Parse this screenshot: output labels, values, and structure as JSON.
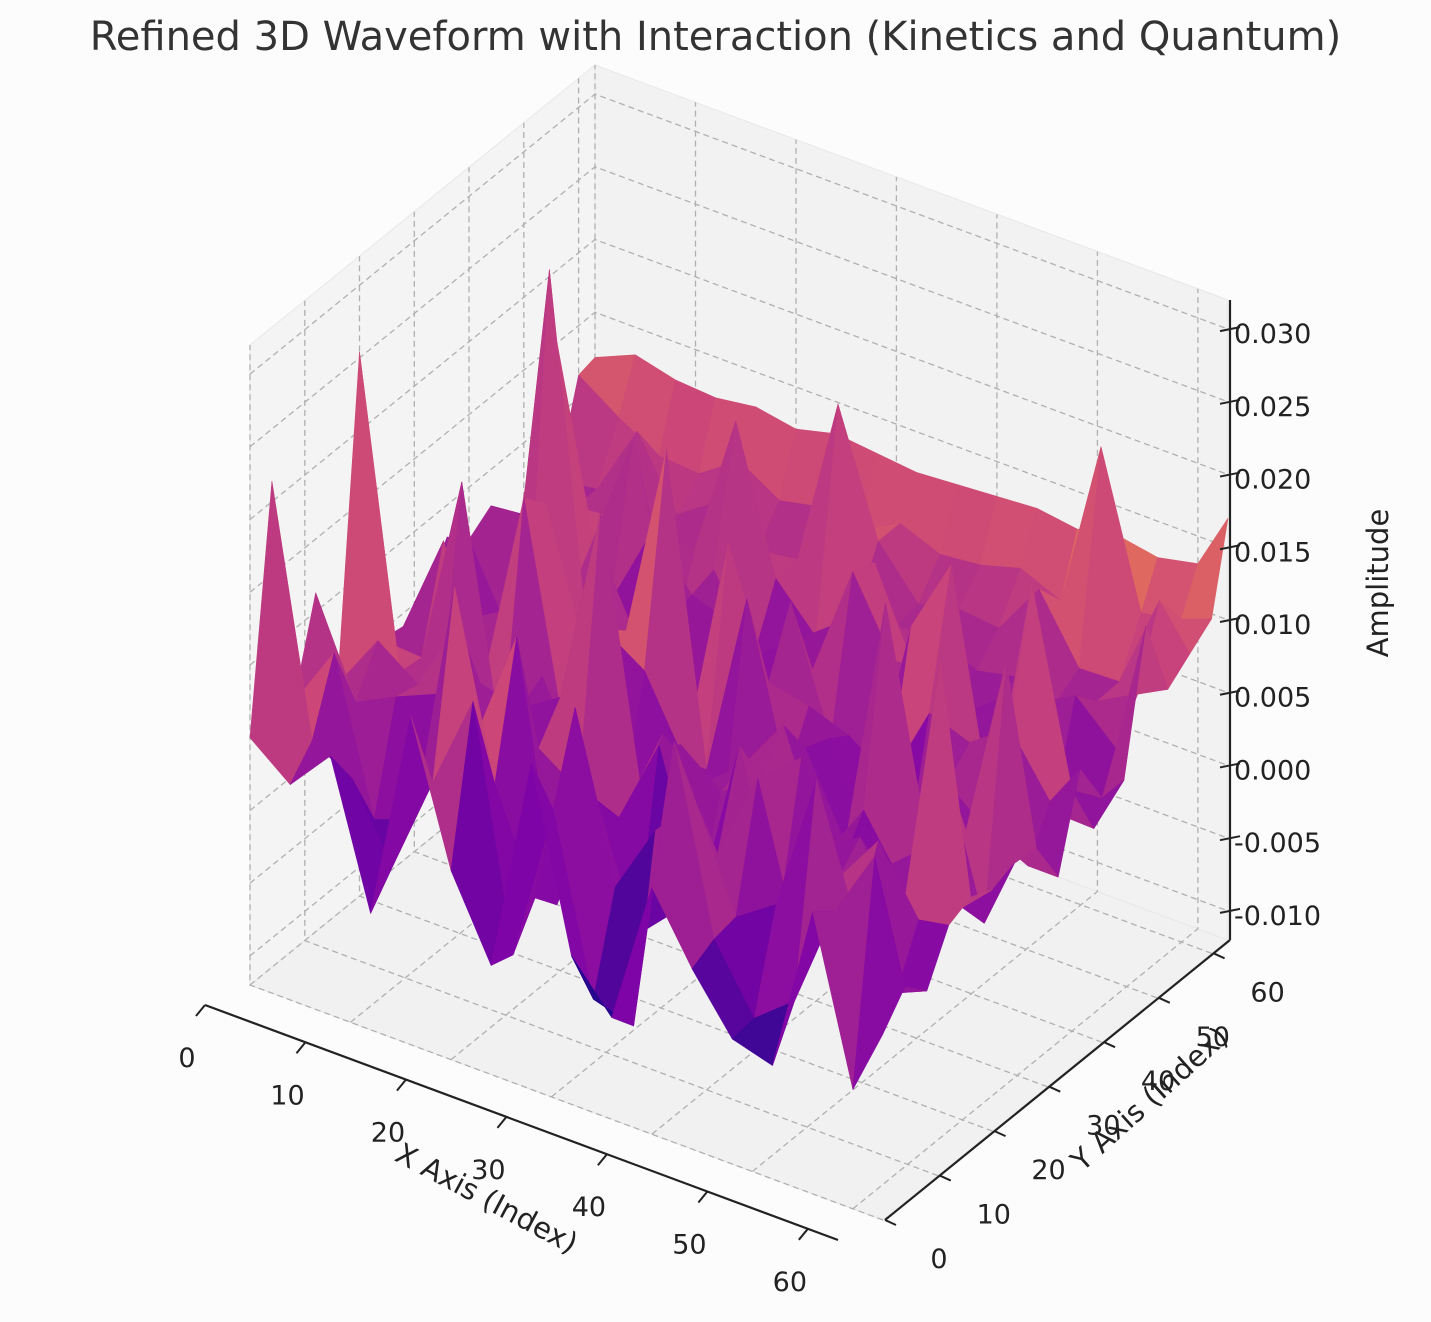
{
  "chart_data": {
    "type": "surface",
    "title": "Refined 3D Waveform with Interaction (Kinetics and Quantum)",
    "xlabel": "X Axis (Index)",
    "ylabel": "Y Axis (Index)",
    "zlabel": "Amplitude",
    "x_ticks": [
      "0",
      "10",
      "20",
      "30",
      "40",
      "50",
      "60"
    ],
    "y_ticks": [
      "0",
      "10",
      "20",
      "30",
      "40",
      "50",
      "60"
    ],
    "z_ticks": [
      "-0.010",
      "-0.005",
      "0.000",
      "0.005",
      "0.010",
      "0.015",
      "0.020",
      "0.025",
      "0.030"
    ],
    "xlim": [
      0,
      63
    ],
    "ylim": [
      0,
      63
    ],
    "zlim": [
      -0.012,
      0.032
    ],
    "grid": true,
    "colormap": "plasma",
    "colors": {
      "pane_floor": "#f1f1f1",
      "pane_left": "#f4f4f4",
      "pane_back": "#f2f2f2",
      "grid": "#b0b0b0",
      "axis": "#222222"
    },
    "surface_x": [
      0,
      4,
      8,
      12,
      16,
      20,
      24,
      28,
      32,
      36,
      40,
      44,
      48,
      52,
      56,
      60,
      63
    ],
    "surface_y": [
      0,
      4,
      8,
      12,
      16,
      20,
      24,
      28,
      32,
      36,
      40,
      44,
      48,
      52,
      56,
      60,
      63
    ],
    "surface_z": [
      [
        0.005,
        0.0028,
        0.0058,
        -0.004,
        0.0106,
        0.001,
        -0.0045,
        0.0104,
        -0.0018,
        -0.005,
        0.005,
        0.0004,
        -0.0034,
        -0.0042,
        0.0074,
        -0.0038,
        0.0008
      ],
      [
        0.0214,
        0.0046,
        0.003,
        -0.002,
        0.0048,
        0.0114,
        -0.005,
        0.006,
        -0.006,
        -0.0068,
        0.0138,
        0.0012,
        -0.0032,
        -0.001,
        0.0062,
        0.011,
        0.0028
      ],
      [
        0.005,
        0.0094,
        -0.001,
        0.0,
        0.017,
        0.0045,
        -0.0023,
        0.0118,
        0.0005,
        0.0054,
        0.0084,
        0.0015,
        0.0034,
        0.013,
        0.0041,
        0.0004,
        0.0013
      ],
      [
        0.0113,
        0.0048,
        0.0062,
        0.0074,
        0.0056,
        0.0134,
        -0.004,
        0.0042,
        -0.004,
        -0.0013,
        0.0036,
        0.0098,
        -0.0006,
        0.005,
        0.0086,
        0.0042,
        0.0046
      ],
      [
        0.0038,
        0.0078,
        0.0058,
        0.011,
        -0.0018,
        0.0045,
        0.0026,
        0.0018,
        0.0078,
        -0.0018,
        0.0098,
        -0.0006,
        0.0048,
        0.0066,
        0.0012,
        0.0208,
        0.0053
      ],
      [
        0.0254,
        0.0044,
        0.0027,
        0.0057,
        0.005,
        0.0068,
        0.0206,
        0.0025,
        0.0066,
        0.0044,
        0.0064,
        0.0088,
        0.0024,
        0.0032,
        0.0056,
        0.0026,
        0.0046
      ],
      [
        0.0044,
        0.0042,
        0.0173,
        0.0001,
        0.006,
        0.0003,
        -0.0014,
        0.0051,
        0.0028,
        0.005,
        0.0088,
        0.0008,
        0.005,
        0.0007,
        0.0102,
        0.0003,
        0.0052
      ],
      [
        0.0041,
        0.011,
        0.0024,
        0.016,
        0.001,
        0.009,
        0.0072,
        0.002,
        0.0001,
        0.0038,
        0.006,
        0.0005,
        0.018,
        0.0033,
        0.0044,
        0.017,
        0.005
      ],
      [
        0.005,
        0.0044,
        0.006,
        0.0144,
        0.0052,
        0.0077,
        0.0212,
        0.0002,
        0.013,
        0.0018,
        0.0054,
        0.0,
        -0.0004,
        0.0054,
        0.0031,
        0.0018,
        0.0018
      ],
      [
        0.0078,
        0.0022,
        0.0023,
        0.0045,
        0.0097,
        0.004,
        0.0002,
        0.0147,
        0.006,
        0.0054,
        0.0044,
        0.0024,
        0.008,
        0.007,
        0.009,
        0.005,
        0.008
      ],
      [
        0.0064,
        0.001,
        0.027,
        0.0013,
        -0.0004,
        0.0061,
        -0.0009,
        -0.0048,
        0.0103,
        0.0018,
        -0.0004,
        0.0117,
        0.017,
        0.001,
        0.0178,
        0.0046,
        0.0048
      ],
      [
        0.0075,
        0.0078,
        0.0035,
        0.0041,
        0.0098,
        0.0065,
        0.0055,
        0.002,
        0.0044,
        0.0122,
        0.0071,
        0.0074,
        0.0002,
        0.0058,
        0.0008,
        0.0007,
        0.0048
      ],
      [
        0.0024,
        0.02,
        0.006,
        0.014,
        0.0011,
        0.007,
        0.0021,
        0.0042,
        0.0063,
        0.0116,
        0.0052,
        0.003,
        0.0052,
        0.006,
        0.0076,
        0.005,
        0.0142
      ],
      [
        0.006,
        0.006,
        0.0063,
        0.0059,
        0.0063,
        0.016,
        0.0062,
        0.0032,
        0.0058,
        0.006,
        0.0062,
        0.005,
        0.0056,
        0.005,
        0.006,
        0.0075,
        0.0086
      ],
      [
        0.0056,
        0.006,
        0.011,
        0.0063,
        0.0082,
        0.0059,
        0.0063,
        0.018,
        0.0096,
        0.0063,
        0.007,
        0.0067,
        0.0104,
        0.006,
        0.0061,
        0.0127,
        0.0098
      ],
      [
        0.0116,
        0.0097,
        0.0081,
        0.0079,
        0.0098,
        0.0081,
        0.0087,
        0.0081,
        0.0096,
        0.0085,
        0.0088,
        0.0096,
        0.0084,
        0.02,
        0.0096,
        0.0102,
        0.011
      ],
      [
        0.0119,
        0.0131,
        0.0124,
        0.0122,
        0.0126,
        0.0121,
        0.0128,
        0.0125,
        0.0122,
        0.0124,
        0.0126,
        0.0128,
        0.0124,
        0.013,
        0.0125,
        0.0131,
        0.017
      ]
    ]
  }
}
